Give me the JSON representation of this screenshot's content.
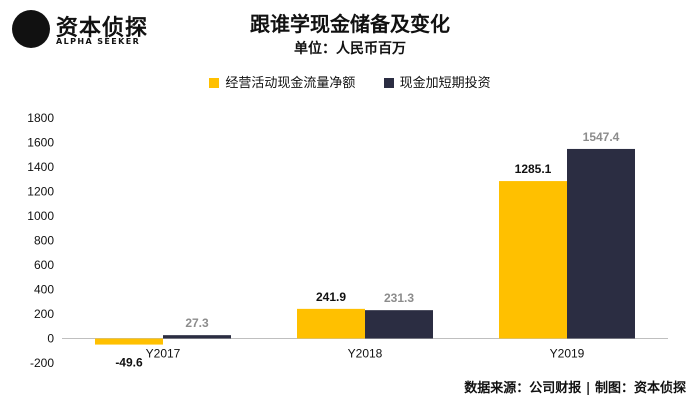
{
  "logo": {
    "name": "资本侦探",
    "sub": "ALPHA SEEKER"
  },
  "colors": {
    "yellow": "#FFC000",
    "navy": "#2B2D42",
    "axis": "#BFBFBF"
  },
  "footer": {
    "source": "数据来源：公司财报 | 制图：资本侦探"
  },
  "chart_data": {
    "type": "bar",
    "title": "跟谁学现金储备及变化",
    "subtitle": "单位：人民币百万",
    "categories": [
      "Y2017",
      "Y2018",
      "Y2019"
    ],
    "series": [
      {
        "name": "经营活动现金流量净额",
        "values": [
          -49.6,
          241.9,
          1285.1
        ],
        "color": "#FFC000",
        "label_color": "#111111"
      },
      {
        "name": "现金加短期投资",
        "values": [
          27.3,
          231.3,
          1547.4
        ],
        "color": "#2B2D42",
        "label_color": "#8C8C8C"
      }
    ],
    "yticks": [
      -200,
      0,
      200,
      400,
      600,
      800,
      1000,
      1200,
      1400,
      1600,
      1800
    ],
    "ylim": [
      -200,
      1800
    ],
    "legend": "top-center",
    "grid": false
  }
}
